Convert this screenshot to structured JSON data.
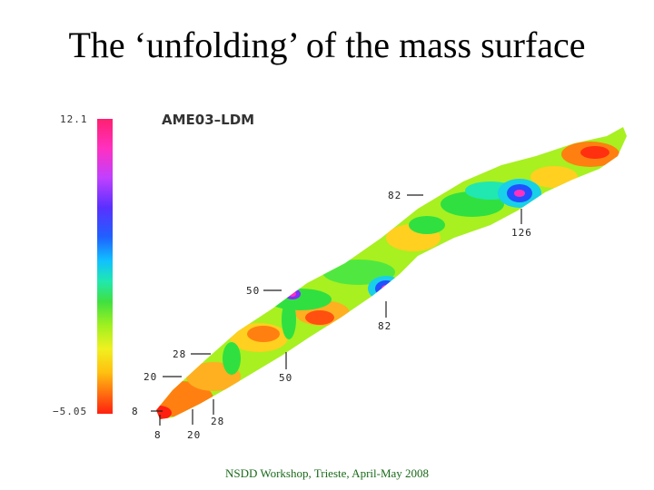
{
  "title": "The ‘unfolding’ of the mass surface",
  "chart_title": "AME03–LDM",
  "colorbar": {
    "max_label": "12.1",
    "min_label": "−5.05"
  },
  "magic_numbers": {
    "left_8": "8",
    "left_20": "20",
    "left_28": "28",
    "left_50": "50",
    "left_82": "82",
    "bottom_8": "8",
    "bottom_20": "20",
    "bottom_28": "28",
    "bottom_50": "50",
    "bottom_82": "82",
    "bottom_126": "126"
  },
  "colors": {
    "red": "#ff2010",
    "orange": "#ff8010",
    "yellow": "#f2f020",
    "lime": "#a8f020",
    "green": "#30e040",
    "cyan": "#18d0e8",
    "blue": "#2050ff",
    "purple": "#8030ff",
    "magenta": "#ff30c0"
  },
  "footer": "NSDD Workshop, Trieste, April-May 2008"
}
